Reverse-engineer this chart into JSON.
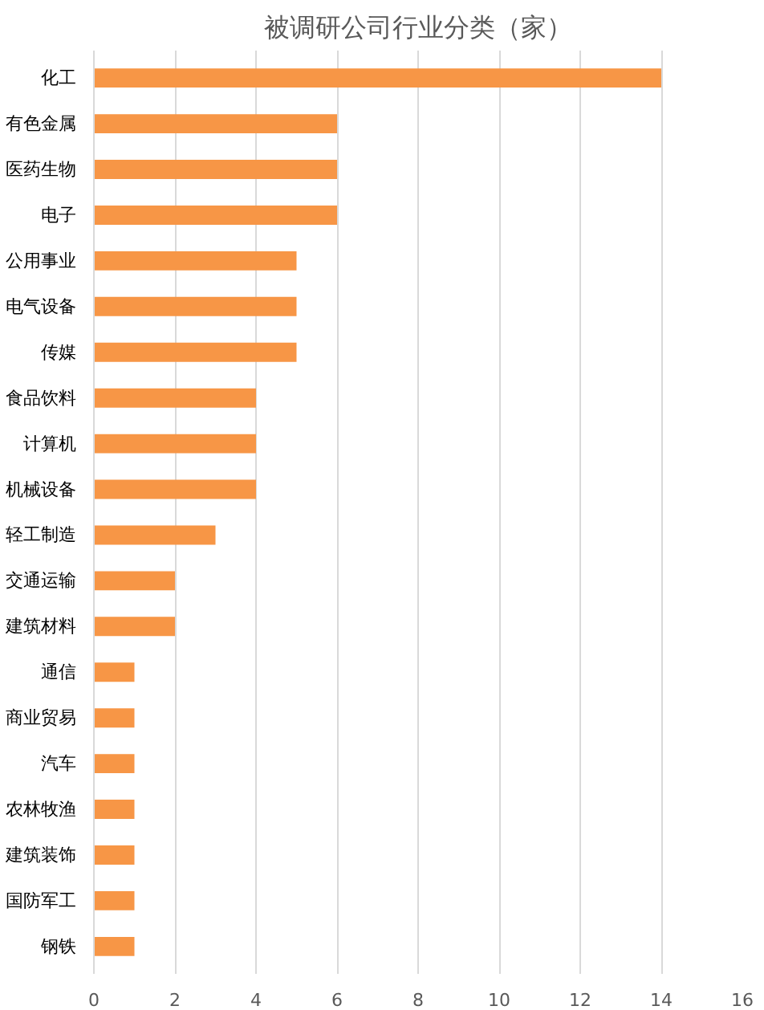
{
  "chart_data": {
    "type": "bar",
    "orientation": "horizontal",
    "title": "被调研公司行业分类（家）",
    "categories": [
      "化工",
      "有色金属",
      "医药生物",
      "电子",
      "公用事业",
      "电气设备",
      "传媒",
      "食品饮料",
      "计算机",
      "机械设备",
      "轻工制造",
      "交通运输",
      "建筑材料",
      "通信",
      "商业贸易",
      "汽车",
      "农林牧渔",
      "建筑装饰",
      "国防军工",
      "钢铁"
    ],
    "values": [
      14,
      6,
      6,
      6,
      5,
      5,
      5,
      4,
      4,
      4,
      3,
      2,
      2,
      1,
      1,
      1,
      1,
      1,
      1,
      1
    ],
    "color": "#f79646",
    "xlim": [
      0,
      16
    ],
    "xticks": [
      0,
      2,
      4,
      6,
      8,
      10,
      12,
      14,
      16
    ],
    "grid": "x"
  }
}
